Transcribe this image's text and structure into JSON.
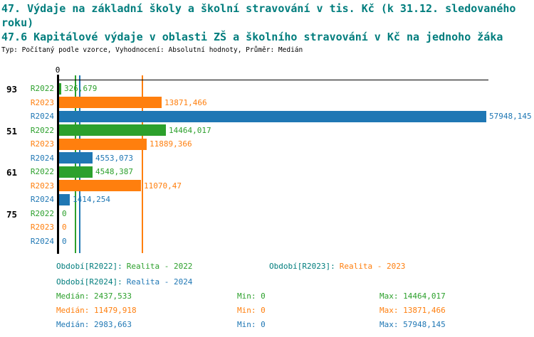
{
  "title_line1": "47. Výdaje na základní školy a školní stravování v tis. Kč (k 31.12. sledovaného roku)",
  "title_line2": "47.6 Kapitálové výdaje v oblasti ZŠ a školního stravování v Kč na jednoho žáka",
  "subtitle": "Typ: Počítaný podle vzorce, Vyhodnocení: Absolutní hodnoty, Průměr: Medián",
  "colors": {
    "title_teal": "#007d7d",
    "axis_black": "#000000",
    "r2022": "#2ca02c",
    "r2023": "#ff7f0e",
    "r2024": "#1f77b4"
  },
  "chart_data": {
    "type": "bar",
    "orientation": "horizontal",
    "axis_tick_label": "0",
    "xlim": [
      0,
      57948.145
    ],
    "grid": false,
    "series_keys": [
      "r2022",
      "r2023",
      "r2024"
    ],
    "series_names": [
      "R2022",
      "R2023",
      "R2024"
    ],
    "categories": [
      "93",
      "51",
      "61",
      "75"
    ],
    "groups": [
      {
        "label": "93",
        "values": [
          326.679,
          13871.466,
          57948.145
        ],
        "value_labels": [
          "326,679",
          "13871,466",
          "57948,145"
        ]
      },
      {
        "label": "51",
        "values": [
          14464.017,
          11889.366,
          4553.073
        ],
        "value_labels": [
          "14464,017",
          "11889,366",
          "4553,073"
        ]
      },
      {
        "label": "61",
        "values": [
          4548.387,
          11070.47,
          1414.254
        ],
        "value_labels": [
          "4548,387",
          "11070,47",
          "1414,254"
        ]
      },
      {
        "label": "75",
        "values": [
          0,
          0,
          0
        ],
        "value_labels": [
          "0",
          "0",
          "0"
        ]
      }
    ],
    "median_lines": [
      2437.533,
      11479.918,
      2983.663
    ],
    "max_value_for_scale": 57948.145
  },
  "legend": {
    "items": [
      {
        "prefix": "Období[R2022]:",
        "value": "Realita - 2022",
        "series": "r2022"
      },
      {
        "prefix": "Období[R2023]:",
        "value": "Realita - 2023",
        "series": "r2023"
      },
      {
        "prefix": "Období[R2024]:",
        "value": "Realita - 2024",
        "series": "r2024"
      }
    ]
  },
  "stats": {
    "rows": [
      {
        "median_label": "Medián:",
        "median": "2437,533",
        "min_label": "Min:",
        "min": "0",
        "max_label": "Max:",
        "max": "14464,017",
        "series": "r2022"
      },
      {
        "median_label": "Medián:",
        "median": "11479,918",
        "min_label": "Min:",
        "min": "0",
        "max_label": "Max:",
        "max": "13871,466",
        "series": "r2023"
      },
      {
        "median_label": "Medián:",
        "median": "2983,663",
        "min_label": "Min:",
        "min": "0",
        "max_label": "Max:",
        "max": "57948,145",
        "series": "r2024"
      }
    ]
  }
}
